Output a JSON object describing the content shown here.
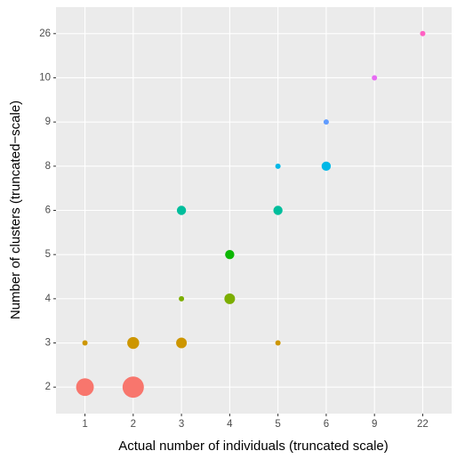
{
  "chart_data": {
    "type": "scatter",
    "xlabel": "Actual number of individuals (truncated scale)",
    "ylabel": "Number of clusters (truncated−scale)",
    "xticks": [
      1,
      2,
      3,
      4,
      5,
      6,
      9,
      22
    ],
    "yticks": [
      2,
      3,
      4,
      5,
      6,
      8,
      9,
      10,
      26
    ],
    "x": [
      1,
      2,
      1,
      2,
      3,
      5,
      3,
      4,
      4,
      3,
      5,
      5,
      6,
      6,
      9,
      22
    ],
    "y": [
      2,
      2,
      3,
      3,
      3,
      3,
      4,
      4,
      5,
      6,
      6,
      8,
      8,
      9,
      10,
      26
    ],
    "sizes": [
      11,
      16,
      1,
      5,
      4,
      1,
      1,
      4,
      3,
      3,
      3,
      1,
      3,
      1,
      1,
      1
    ],
    "colors": [
      "#F8766D",
      "#F8766D",
      "#CD9600",
      "#CD9600",
      "#CD9600",
      "#CD9600",
      "#7CAE00",
      "#7CAE00",
      "#0CB702",
      "#00BE9C",
      "#00BE9C",
      "#00B8E7",
      "#00B8E7",
      "#619CFF",
      "#E76BF3",
      "#FF61C3"
    ],
    "grid": true
  }
}
